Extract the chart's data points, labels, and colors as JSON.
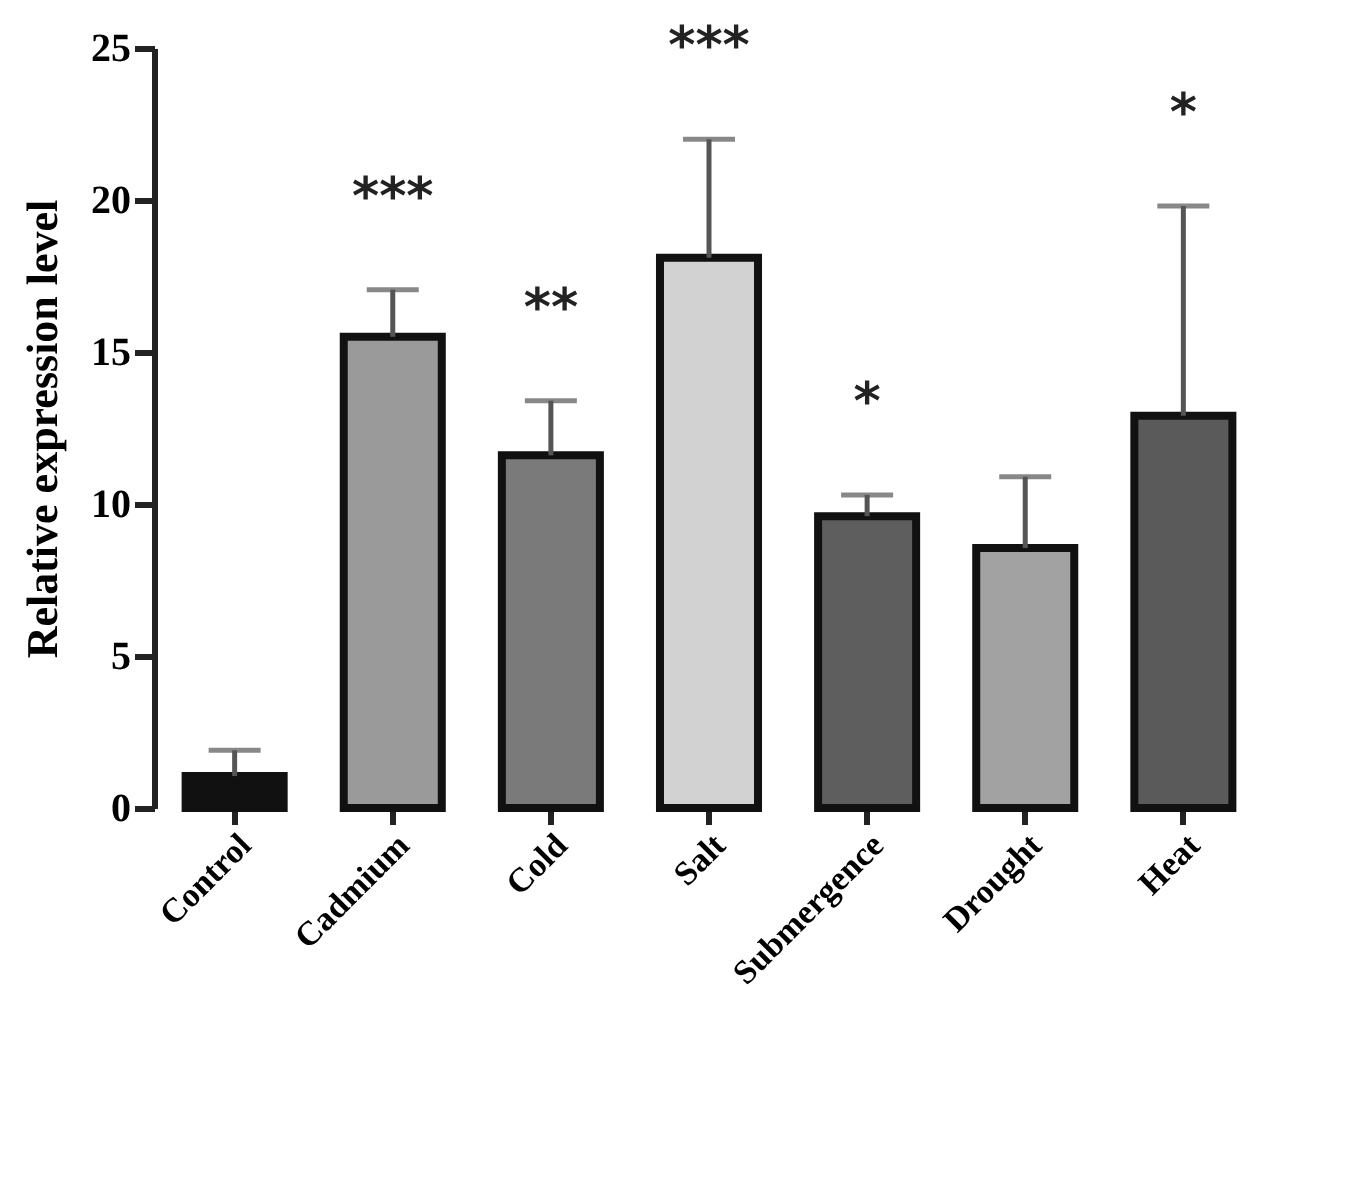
{
  "chart_data": {
    "type": "bar",
    "ylabel": "Relative expression level",
    "categories": [
      "Control",
      "Cadmium",
      "Cold",
      "Salt",
      "Submergence",
      "Drought",
      "Heat"
    ],
    "values": [
      1.05,
      15.5,
      11.6,
      18.1,
      9.6,
      8.55,
      12.9
    ],
    "colors": [
      "#111111",
      "#9a9a9a",
      "#7a7a7a",
      "#d2d2d2",
      "#5e5e5e",
      "#a2a2a2",
      "#5a5a5a"
    ],
    "errors": [
      0.85,
      1.55,
      1.8,
      3.9,
      0.7,
      2.35,
      6.9
    ],
    "ylim": [
      0,
      25
    ],
    "yticks": [
      0,
      5,
      10,
      15,
      20,
      25
    ],
    "grid": false,
    "annotations": [
      {
        "text": "***",
        "x": "Cadmium",
        "y": 17.05
      },
      {
        "text": "**",
        "x": "Cold",
        "y": 13.4
      },
      {
        "text": "***",
        "x": "Salt",
        "y": 22.0
      },
      {
        "text": "*",
        "x": "Submergence",
        "y": 10.3
      },
      {
        "text": "*",
        "x": "Heat",
        "y": 19.8
      }
    ]
  }
}
